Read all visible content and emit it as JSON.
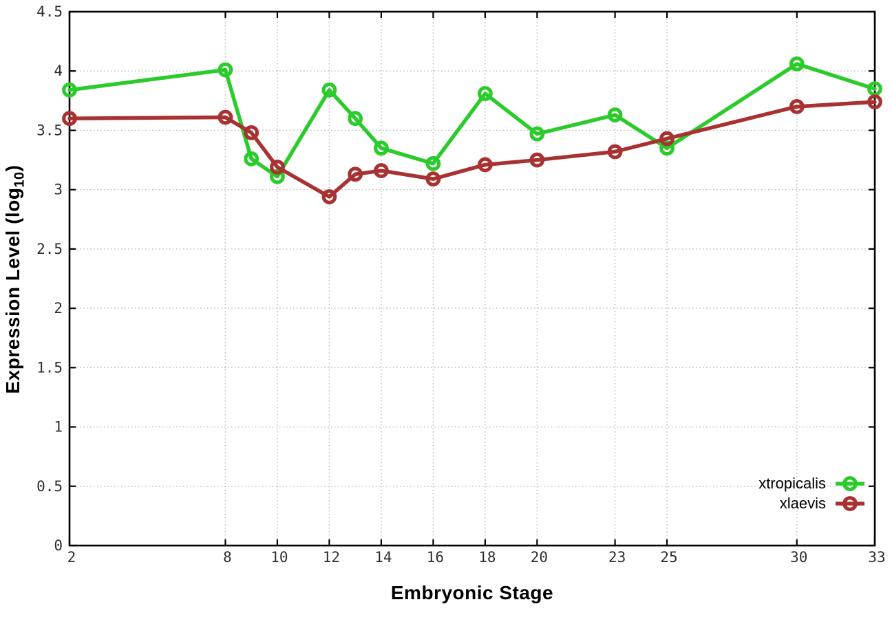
{
  "page": {
    "background": "#ffffff"
  },
  "chart_data": {
    "type": "line",
    "title": "",
    "xlabel": "Embryonic Stage",
    "ylabel": "Expression Level (log₁₀)",
    "ylabel_parts": {
      "main": "Expression Level (log",
      "sub": "10",
      "close": ")"
    },
    "x": [
      2,
      8,
      9,
      10,
      12,
      13,
      14,
      16,
      18,
      20,
      23,
      25,
      30,
      33
    ],
    "series": [
      {
        "name": "xtropicalis",
        "color": "#2bcb2b",
        "marker": "open-circle",
        "values": [
          3.84,
          4.01,
          3.26,
          3.11,
          3.84,
          3.6,
          3.35,
          3.22,
          3.81,
          3.47,
          3.63,
          3.35,
          4.06,
          3.85
        ]
      },
      {
        "name": "xlaevis",
        "color": "#a83232",
        "marker": "open-circle",
        "values": [
          3.6,
          3.61,
          3.48,
          3.19,
          2.94,
          3.13,
          3.16,
          3.09,
          3.21,
          3.25,
          3.32,
          3.43,
          3.7,
          3.74
        ]
      }
    ],
    "xticks": {
      "values": [
        2,
        8,
        10,
        12,
        14,
        16,
        18,
        20,
        23,
        25,
        30,
        33
      ],
      "labels": [
        "2",
        "8",
        "10",
        "12",
        "14",
        "16",
        "18",
        "20",
        "23",
        "25",
        "30",
        "33"
      ]
    },
    "yticks": {
      "values": [
        0,
        0.5,
        1,
        1.5,
        2,
        2.5,
        3,
        3.5,
        4,
        4.5
      ],
      "labels": [
        "0",
        "0.5",
        "1",
        "1.5",
        "2",
        "2.5",
        "3",
        "3.5",
        "4",
        "4.5"
      ]
    },
    "xlim": [
      2,
      33
    ],
    "ylim": [
      0,
      4.5
    ],
    "grid": true,
    "grid_style": "dotted",
    "legend_position": "bottom-right-inside",
    "colors": {
      "border": "#000000",
      "grid": "#b8b8b8",
      "tick_label": "#2f2f2f",
      "axis_title": "#000000"
    }
  }
}
